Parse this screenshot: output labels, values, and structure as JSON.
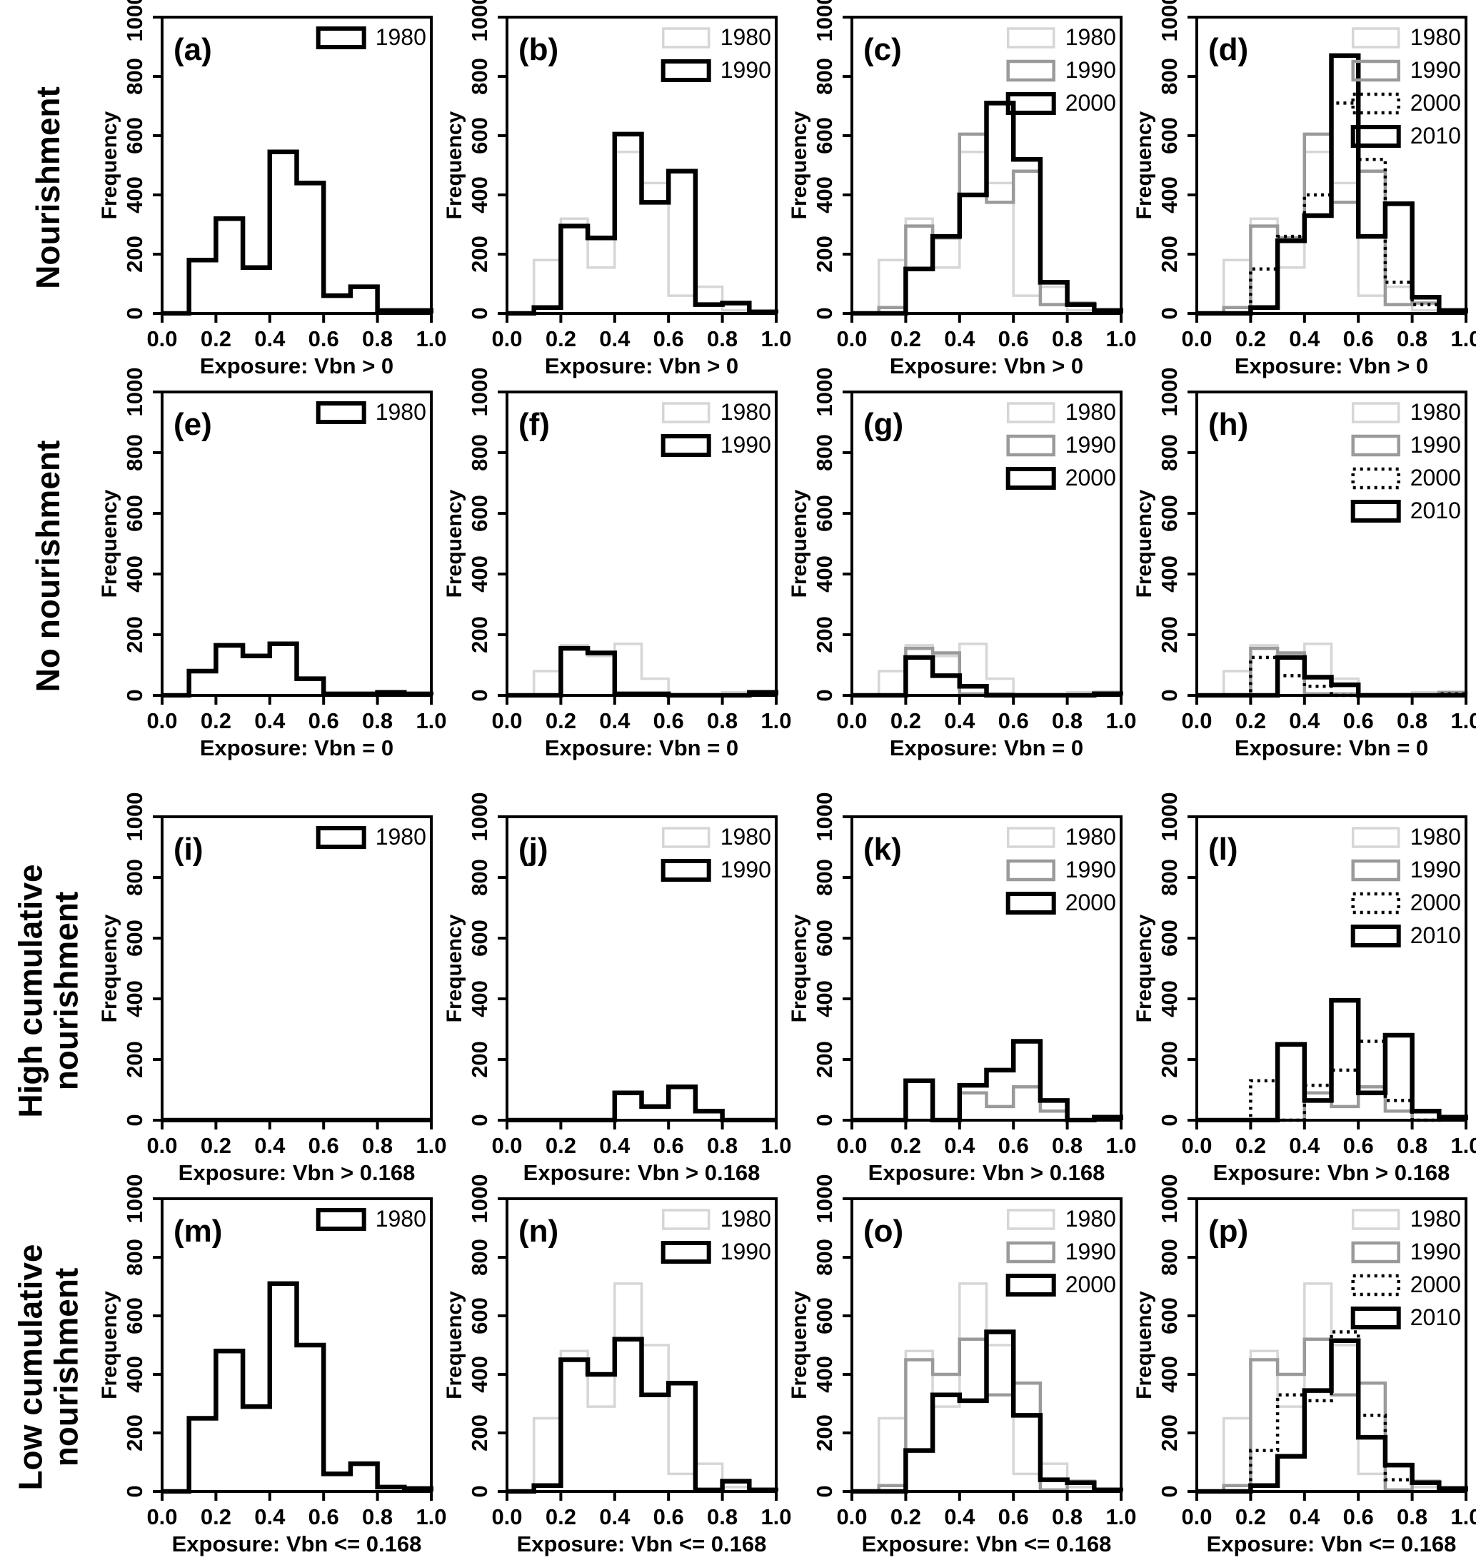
{
  "figure": {
    "ylabel": "Frequency",
    "ylim": [
      0,
      1000
    ],
    "yticks": [
      0,
      200,
      400,
      600,
      800,
      1000
    ],
    "xlim": [
      0,
      1
    ],
    "xticks": [
      0,
      0.2,
      0.4,
      0.6,
      0.8,
      1.0
    ],
    "bin_width": 0.1,
    "legend_position": "top-right",
    "grid": "off",
    "styles": {
      "light": {
        "color": "#d6d6d6",
        "width": 3.5,
        "dash": null
      },
      "mid": {
        "color": "#9a9a9a",
        "width": 4.5,
        "dash": null
      },
      "dotted": {
        "color": "#000000",
        "width": 4.5,
        "dash": "4 6"
      },
      "bold": {
        "color": "#000000",
        "width": 6.5,
        "dash": null
      }
    }
  },
  "rows": [
    {
      "label": "Nourishment",
      "xlabel": "Exposure: Vbn > 0"
    },
    {
      "label": "No nourishment",
      "xlabel": "Exposure: Vbn = 0"
    },
    {
      "label": "High cumulative\nnourishment",
      "xlabel": "Exposure: Vbn > 0.168"
    },
    {
      "label": "Low cumulative\nnourishment",
      "xlabel": "Exposure: Vbn <= 0.168"
    }
  ],
  "chart_data": [
    {
      "panel": "(a)",
      "row": "Nourishment",
      "type": "bar",
      "subtype": "step-histogram",
      "xlabel": "Exposure: Vbn > 0",
      "ylabel": "Frequency",
      "xlim": [
        0,
        1
      ],
      "ylim": [
        0,
        1000
      ],
      "bin_width": 0.1,
      "series": [
        {
          "name": "1980",
          "style": "bold",
          "values": [
            0,
            180,
            320,
            155,
            545,
            440,
            60,
            90,
            10,
            10
          ]
        }
      ]
    },
    {
      "panel": "(b)",
      "row": "Nourishment",
      "type": "bar",
      "subtype": "step-histogram",
      "xlabel": "Exposure: Vbn > 0",
      "ylabel": "Frequency",
      "xlim": [
        0,
        1
      ],
      "ylim": [
        0,
        1000
      ],
      "bin_width": 0.1,
      "series": [
        {
          "name": "1980",
          "style": "light",
          "values": [
            0,
            180,
            320,
            155,
            545,
            440,
            60,
            90,
            10,
            10
          ]
        },
        {
          "name": "1990",
          "style": "bold",
          "values": [
            0,
            20,
            295,
            255,
            605,
            375,
            480,
            30,
            35,
            5
          ]
        }
      ]
    },
    {
      "panel": "(c)",
      "row": "Nourishment",
      "type": "bar",
      "subtype": "step-histogram",
      "xlabel": "Exposure: Vbn > 0",
      "ylabel": "Frequency",
      "xlim": [
        0,
        1
      ],
      "ylim": [
        0,
        1000
      ],
      "bin_width": 0.1,
      "series": [
        {
          "name": "1980",
          "style": "light",
          "values": [
            0,
            180,
            320,
            155,
            545,
            440,
            60,
            90,
            10,
            10
          ]
        },
        {
          "name": "1990",
          "style": "mid",
          "values": [
            0,
            20,
            295,
            255,
            605,
            375,
            480,
            30,
            35,
            5
          ]
        },
        {
          "name": "2000",
          "style": "bold",
          "values": [
            0,
            0,
            150,
            260,
            400,
            710,
            520,
            105,
            30,
            10
          ]
        }
      ]
    },
    {
      "panel": "(d)",
      "row": "Nourishment",
      "type": "bar",
      "subtype": "step-histogram",
      "xlabel": "Exposure: Vbn > 0",
      "ylabel": "Frequency",
      "xlim": [
        0,
        1
      ],
      "ylim": [
        0,
        1000
      ],
      "bin_width": 0.1,
      "series": [
        {
          "name": "1980",
          "style": "light",
          "values": [
            0,
            180,
            320,
            155,
            545,
            440,
            60,
            90,
            10,
            10
          ]
        },
        {
          "name": "1990",
          "style": "mid",
          "values": [
            0,
            20,
            295,
            255,
            605,
            375,
            480,
            30,
            35,
            5
          ]
        },
        {
          "name": "2000",
          "style": "dotted",
          "values": [
            0,
            0,
            150,
            260,
            400,
            710,
            520,
            105,
            30,
            10
          ]
        },
        {
          "name": "2010",
          "style": "bold",
          "values": [
            0,
            0,
            20,
            245,
            330,
            870,
            260,
            370,
            55,
            10
          ]
        }
      ]
    },
    {
      "panel": "(e)",
      "row": "No nourishment",
      "type": "bar",
      "subtype": "step-histogram",
      "xlabel": "Exposure: Vbn = 0",
      "ylabel": "Frequency",
      "xlim": [
        0,
        1
      ],
      "ylim": [
        0,
        1000
      ],
      "bin_width": 0.1,
      "series": [
        {
          "name": "1980",
          "style": "bold",
          "values": [
            0,
            80,
            165,
            130,
            170,
            55,
            5,
            5,
            10,
            5
          ]
        }
      ]
    },
    {
      "panel": "(f)",
      "row": "No nourishment",
      "type": "bar",
      "subtype": "step-histogram",
      "xlabel": "Exposure: Vbn = 0",
      "ylabel": "Frequency",
      "xlim": [
        0,
        1
      ],
      "ylim": [
        0,
        1000
      ],
      "bin_width": 0.1,
      "series": [
        {
          "name": "1980",
          "style": "light",
          "values": [
            0,
            80,
            165,
            130,
            170,
            55,
            5,
            5,
            10,
            5
          ]
        },
        {
          "name": "1990",
          "style": "bold",
          "values": [
            0,
            0,
            155,
            140,
            5,
            5,
            0,
            0,
            0,
            10
          ]
        }
      ]
    },
    {
      "panel": "(g)",
      "row": "No nourishment",
      "type": "bar",
      "subtype": "step-histogram",
      "xlabel": "Exposure: Vbn = 0",
      "ylabel": "Frequency",
      "xlim": [
        0,
        1
      ],
      "ylim": [
        0,
        1000
      ],
      "bin_width": 0.1,
      "series": [
        {
          "name": "1980",
          "style": "light",
          "values": [
            0,
            80,
            165,
            130,
            170,
            55,
            5,
            5,
            10,
            5
          ]
        },
        {
          "name": "1990",
          "style": "mid",
          "values": [
            0,
            0,
            155,
            140,
            5,
            5,
            0,
            0,
            0,
            10
          ]
        },
        {
          "name": "2000",
          "style": "bold",
          "values": [
            0,
            0,
            125,
            65,
            30,
            0,
            0,
            0,
            0,
            5
          ]
        }
      ]
    },
    {
      "panel": "(h)",
      "row": "No nourishment",
      "type": "bar",
      "subtype": "step-histogram",
      "xlabel": "Exposure: Vbn = 0",
      "ylabel": "Frequency",
      "xlim": [
        0,
        1
      ],
      "ylim": [
        0,
        1000
      ],
      "bin_width": 0.1,
      "series": [
        {
          "name": "1980",
          "style": "light",
          "values": [
            0,
            80,
            165,
            130,
            170,
            55,
            5,
            5,
            10,
            5
          ]
        },
        {
          "name": "1990",
          "style": "mid",
          "values": [
            0,
            0,
            155,
            140,
            5,
            5,
            0,
            0,
            0,
            10
          ]
        },
        {
          "name": "2000",
          "style": "dotted",
          "values": [
            0,
            0,
            125,
            65,
            30,
            0,
            0,
            0,
            0,
            5
          ]
        },
        {
          "name": "2010",
          "style": "bold",
          "values": [
            0,
            0,
            0,
            125,
            60,
            35,
            0,
            0,
            0,
            0
          ]
        }
      ]
    },
    {
      "panel": "(i)",
      "row": "High cumulative nourishment",
      "type": "bar",
      "subtype": "step-histogram",
      "xlabel": "Exposure: Vbn > 0.168",
      "ylabel": "Frequency",
      "xlim": [
        0,
        1
      ],
      "ylim": [
        0,
        1000
      ],
      "bin_width": 0.1,
      "series": [
        {
          "name": "1980",
          "style": "bold",
          "values": [
            0,
            0,
            0,
            0,
            0,
            0,
            0,
            0,
            0,
            0
          ]
        }
      ]
    },
    {
      "panel": "(j)",
      "row": "High cumulative nourishment",
      "type": "bar",
      "subtype": "step-histogram",
      "xlabel": "Exposure: Vbn > 0.168",
      "ylabel": "Frequency",
      "xlim": [
        0,
        1
      ],
      "ylim": [
        0,
        1000
      ],
      "bin_width": 0.1,
      "series": [
        {
          "name": "1980",
          "style": "light",
          "values": [
            0,
            0,
            0,
            0,
            0,
            0,
            0,
            0,
            0,
            0
          ]
        },
        {
          "name": "1990",
          "style": "bold",
          "values": [
            0,
            0,
            0,
            0,
            90,
            45,
            110,
            30,
            0,
            0
          ]
        }
      ]
    },
    {
      "panel": "(k)",
      "row": "High cumulative nourishment",
      "type": "bar",
      "subtype": "step-histogram",
      "xlabel": "Exposure: Vbn > 0.168",
      "ylabel": "Frequency",
      "xlim": [
        0,
        1
      ],
      "ylim": [
        0,
        1000
      ],
      "bin_width": 0.1,
      "series": [
        {
          "name": "1980",
          "style": "light",
          "values": [
            0,
            0,
            0,
            0,
            0,
            0,
            0,
            0,
            0,
            0
          ]
        },
        {
          "name": "1990",
          "style": "mid",
          "values": [
            0,
            0,
            0,
            0,
            90,
            45,
            110,
            30,
            0,
            0
          ]
        },
        {
          "name": "2000",
          "style": "bold",
          "values": [
            0,
            0,
            130,
            0,
            115,
            165,
            260,
            65,
            0,
            10
          ]
        }
      ]
    },
    {
      "panel": "(l)",
      "row": "High cumulative nourishment",
      "type": "bar",
      "subtype": "step-histogram",
      "xlabel": "Exposure: Vbn > 0.168",
      "ylabel": "Frequency",
      "xlim": [
        0,
        1
      ],
      "ylim": [
        0,
        1000
      ],
      "bin_width": 0.1,
      "series": [
        {
          "name": "1980",
          "style": "light",
          "values": [
            0,
            0,
            0,
            0,
            0,
            0,
            0,
            0,
            0,
            0
          ]
        },
        {
          "name": "1990",
          "style": "mid",
          "values": [
            0,
            0,
            0,
            0,
            90,
            45,
            110,
            30,
            0,
            0
          ]
        },
        {
          "name": "2000",
          "style": "dotted",
          "values": [
            0,
            0,
            130,
            0,
            115,
            165,
            260,
            65,
            0,
            10
          ]
        },
        {
          "name": "2010",
          "style": "bold",
          "values": [
            0,
            0,
            0,
            250,
            65,
            395,
            90,
            280,
            30,
            10
          ]
        }
      ]
    },
    {
      "panel": "(m)",
      "row": "Low cumulative nourishment",
      "type": "bar",
      "subtype": "step-histogram",
      "xlabel": "Exposure: Vbn <= 0.168",
      "ylabel": "Frequency",
      "xlim": [
        0,
        1
      ],
      "ylim": [
        0,
        1000
      ],
      "bin_width": 0.1,
      "series": [
        {
          "name": "1980",
          "style": "bold",
          "values": [
            0,
            250,
            480,
            290,
            710,
            500,
            60,
            95,
            15,
            10
          ]
        }
      ]
    },
    {
      "panel": "(n)",
      "row": "Low cumulative nourishment",
      "type": "bar",
      "subtype": "step-histogram",
      "xlabel": "Exposure: Vbn <= 0.168",
      "ylabel": "Frequency",
      "xlim": [
        0,
        1
      ],
      "ylim": [
        0,
        1000
      ],
      "bin_width": 0.1,
      "series": [
        {
          "name": "1980",
          "style": "light",
          "values": [
            0,
            250,
            480,
            290,
            710,
            500,
            60,
            95,
            15,
            10
          ]
        },
        {
          "name": "1990",
          "style": "bold",
          "values": [
            0,
            20,
            450,
            400,
            520,
            330,
            370,
            5,
            35,
            5
          ]
        }
      ]
    },
    {
      "panel": "(o)",
      "row": "Low cumulative nourishment",
      "type": "bar",
      "subtype": "step-histogram",
      "xlabel": "Exposure: Vbn <= 0.168",
      "ylabel": "Frequency",
      "xlim": [
        0,
        1
      ],
      "ylim": [
        0,
        1000
      ],
      "bin_width": 0.1,
      "series": [
        {
          "name": "1980",
          "style": "light",
          "values": [
            0,
            250,
            480,
            290,
            710,
            500,
            60,
            95,
            15,
            10
          ]
        },
        {
          "name": "1990",
          "style": "mid",
          "values": [
            0,
            20,
            450,
            400,
            520,
            330,
            370,
            5,
            35,
            5
          ]
        },
        {
          "name": "2000",
          "style": "bold",
          "values": [
            0,
            0,
            140,
            330,
            310,
            545,
            260,
            40,
            30,
            5
          ]
        }
      ]
    },
    {
      "panel": "(p)",
      "row": "Low cumulative nourishment",
      "type": "bar",
      "subtype": "step-histogram",
      "xlabel": "Exposure: Vbn <= 0.168",
      "ylabel": "Frequency",
      "xlim": [
        0,
        1
      ],
      "ylim": [
        0,
        1000
      ],
      "bin_width": 0.1,
      "series": [
        {
          "name": "1980",
          "style": "light",
          "values": [
            0,
            250,
            480,
            290,
            710,
            500,
            60,
            95,
            15,
            10
          ]
        },
        {
          "name": "1990",
          "style": "mid",
          "values": [
            0,
            20,
            450,
            400,
            520,
            330,
            370,
            5,
            35,
            5
          ]
        },
        {
          "name": "2000",
          "style": "dotted",
          "values": [
            0,
            0,
            140,
            330,
            310,
            545,
            260,
            40,
            30,
            5
          ]
        },
        {
          "name": "2010",
          "style": "bold",
          "values": [
            0,
            0,
            20,
            120,
            345,
            515,
            185,
            90,
            30,
            10
          ]
        }
      ]
    }
  ]
}
